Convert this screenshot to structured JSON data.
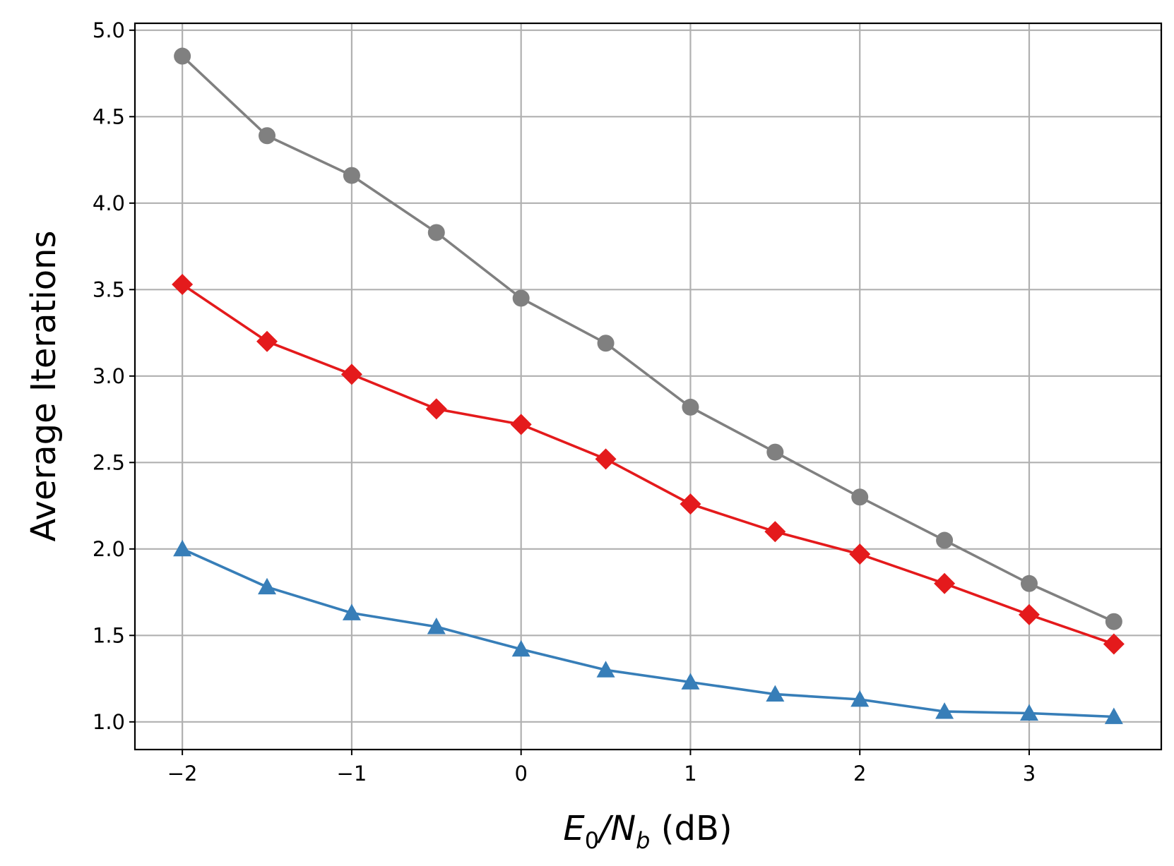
{
  "chart_data": {
    "type": "line",
    "xlabel": {
      "main": "E",
      "sub1": "0",
      "mid": "/N",
      "sub2": "b",
      "tail": " (dB)"
    },
    "ylabel": "Average Iterations",
    "xlim": [
      -2.28,
      3.78
    ],
    "ylim": [
      0.84,
      5.04
    ],
    "x_ticks": [
      -2,
      -1,
      0,
      1,
      2,
      3
    ],
    "x_tick_labels": [
      "−2",
      "−1",
      "0",
      "1",
      "2",
      "3"
    ],
    "y_ticks": [
      1.0,
      1.5,
      2.0,
      2.5,
      3.0,
      3.5,
      4.0,
      4.5,
      5.0
    ],
    "y_tick_labels": [
      "1.0",
      "1.5",
      "2.0",
      "2.5",
      "3.0",
      "3.5",
      "4.0",
      "4.5",
      "5.0"
    ],
    "grid": true,
    "x": [
      -2,
      -1.5,
      -1,
      -0.5,
      0,
      0.5,
      1,
      1.5,
      2,
      2.5,
      3,
      3.5
    ],
    "series": [
      {
        "color": "#808080",
        "marker": "circle",
        "values": [
          4.85,
          4.39,
          4.16,
          3.83,
          3.45,
          3.19,
          2.82,
          2.56,
          2.3,
          2.05,
          1.8,
          1.58
        ]
      },
      {
        "color": "#e41a1c",
        "marker": "diamond",
        "values": [
          3.53,
          3.2,
          3.01,
          2.81,
          2.72,
          2.52,
          2.26,
          2.1,
          1.97,
          1.8,
          1.62,
          1.45
        ]
      },
      {
        "color": "#377eb8",
        "marker": "triangle",
        "values": [
          2.0,
          1.78,
          1.63,
          1.55,
          1.42,
          1.3,
          1.23,
          1.16,
          1.13,
          1.06,
          1.05,
          1.03
        ]
      }
    ]
  }
}
